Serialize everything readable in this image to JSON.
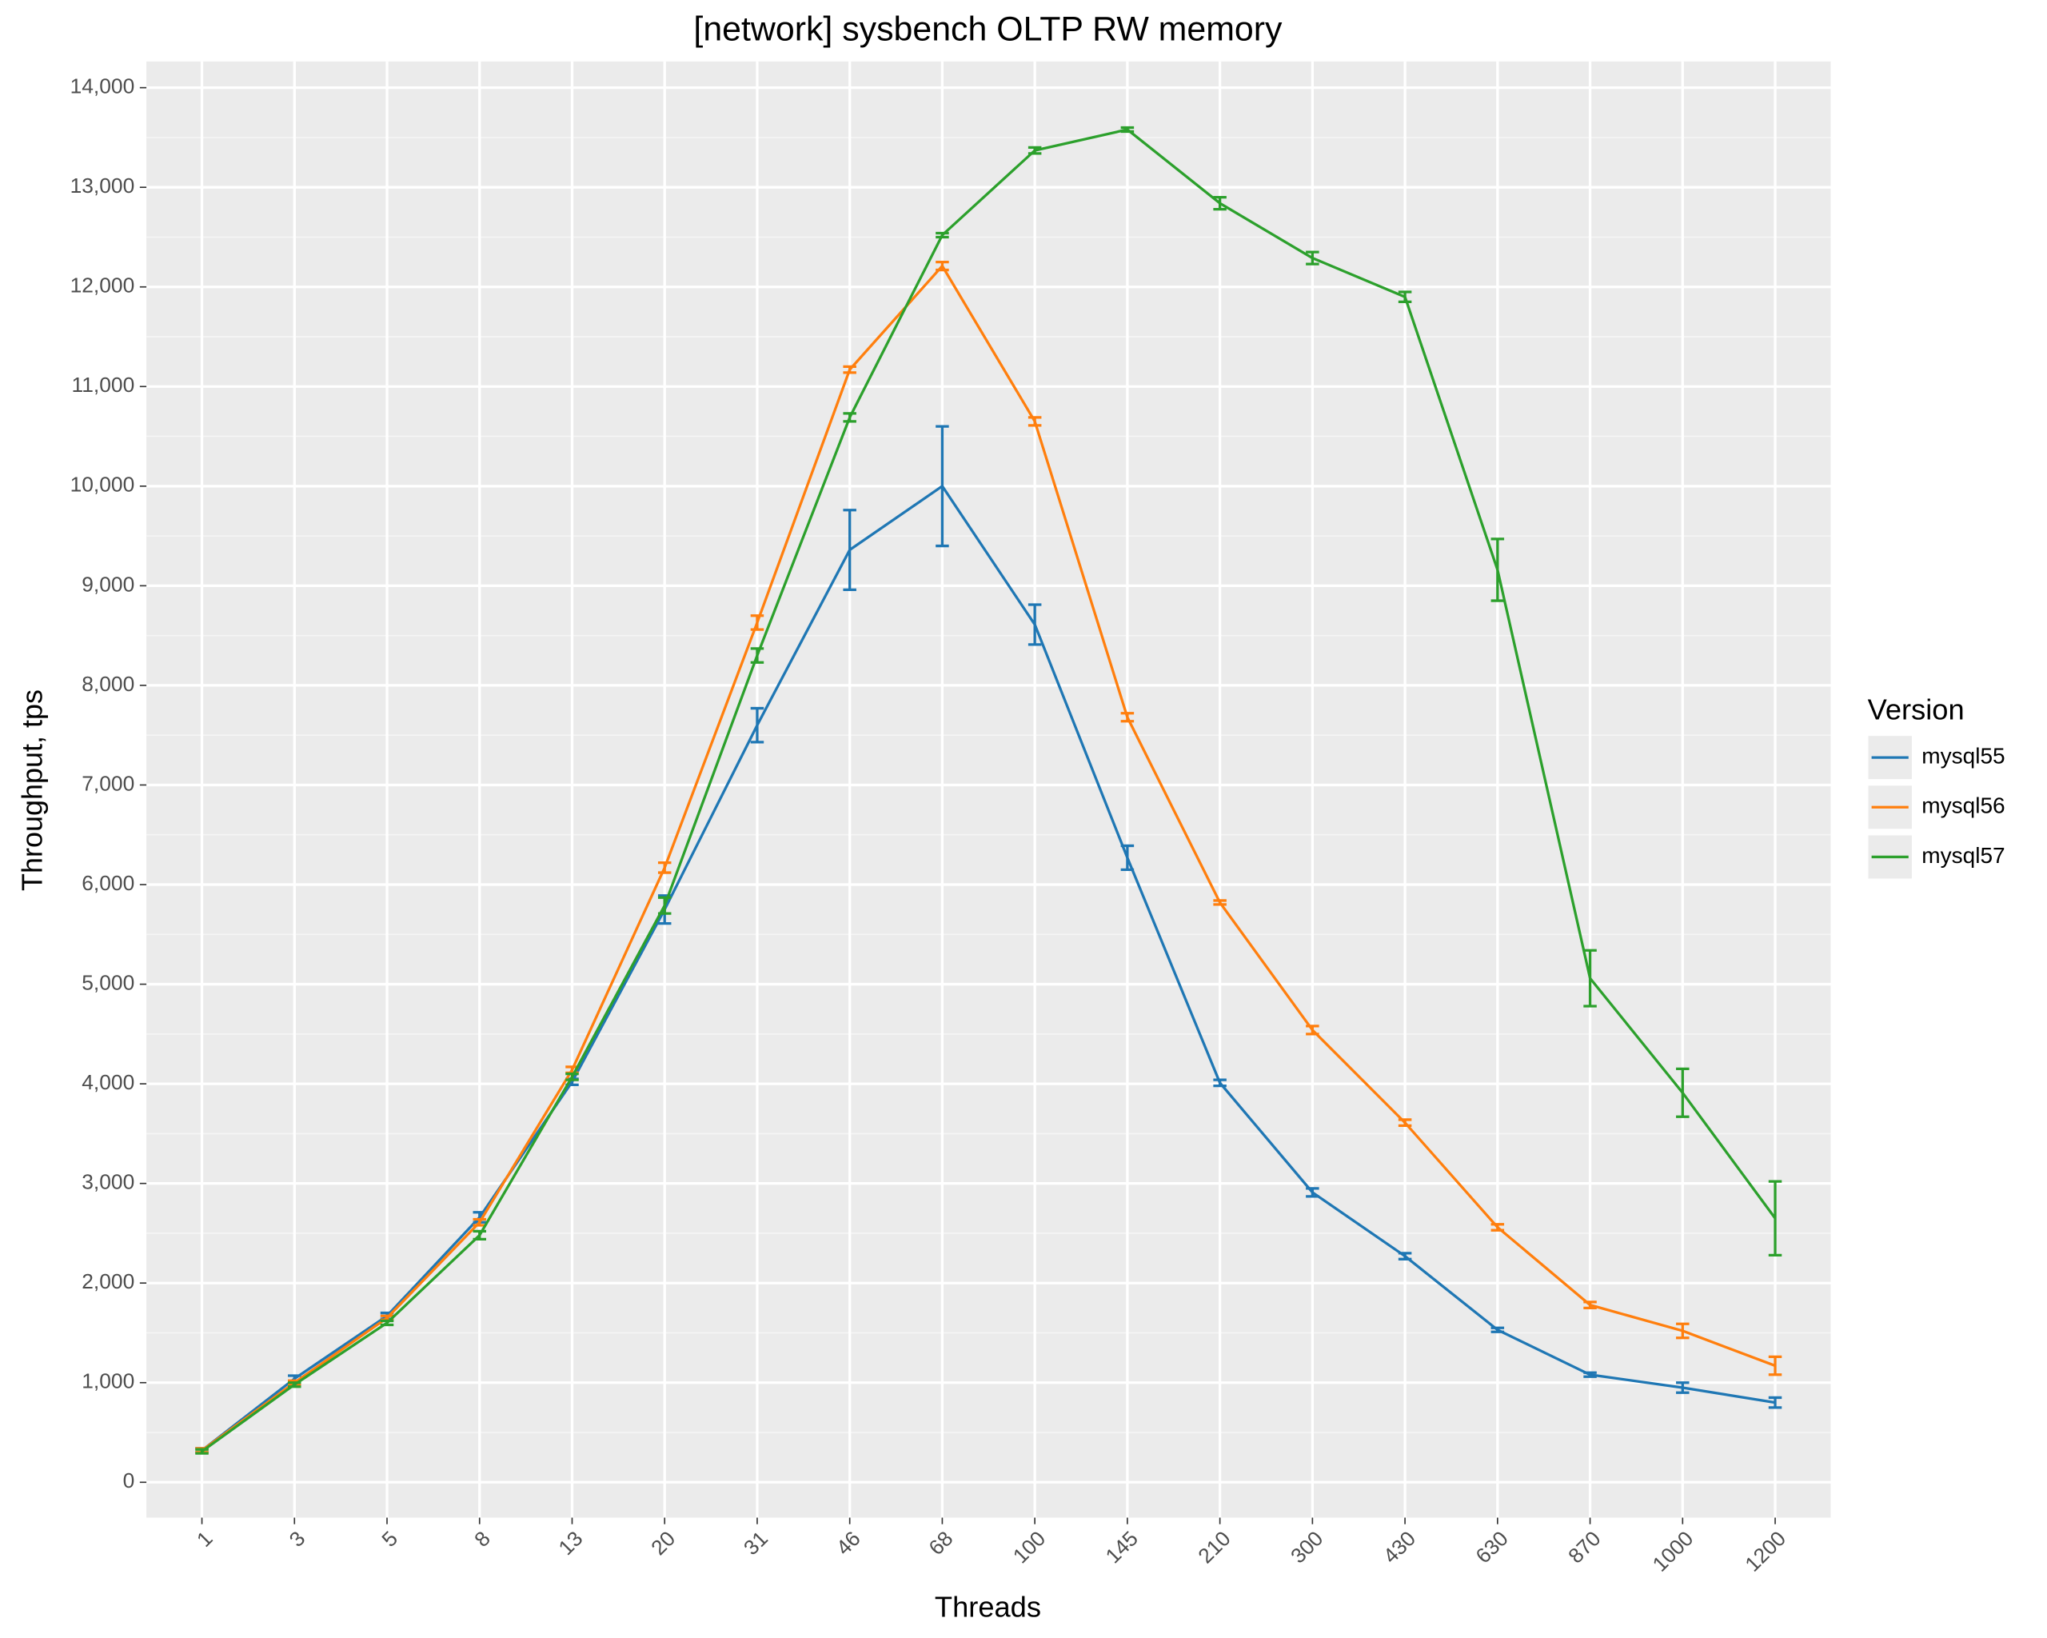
{
  "chart_data": {
    "type": "line",
    "title": "[network] sysbench OLTP RW memory",
    "x_label": "Threads",
    "y_label": "Throughput, tps",
    "legend_title": "Version",
    "legend_position": "right",
    "grid": true,
    "categories": [
      "1",
      "3",
      "5",
      "8",
      "13",
      "20",
      "31",
      "46",
      "68",
      "100",
      "145",
      "210",
      "300",
      "430",
      "630",
      "870",
      "1000",
      "1200"
    ],
    "series": [
      {
        "name": "mysql55",
        "color": "#1f77b4",
        "values": [
          320,
          1040,
          1670,
          2660,
          4020,
          5750,
          7600,
          9360,
          10000,
          8610,
          6270,
          4010,
          2910,
          2270,
          1530,
          1080,
          950,
          800
        ],
        "errors": [
          20,
          30,
          30,
          50,
          30,
          140,
          170,
          400,
          600,
          200,
          120,
          30,
          40,
          30,
          20,
          20,
          50,
          50
        ]
      },
      {
        "name": "mysql56",
        "color": "#ff7f0e",
        "values": [
          320,
          1000,
          1650,
          2610,
          4140,
          6170,
          8630,
          11170,
          12210,
          10650,
          7680,
          5820,
          4540,
          3610,
          2560,
          1780,
          1520,
          1170
        ],
        "errors": [
          20,
          20,
          20,
          30,
          30,
          50,
          70,
          30,
          40,
          40,
          40,
          20,
          40,
          30,
          30,
          30,
          70,
          90
        ]
      },
      {
        "name": "mysql57",
        "color": "#2ca02c",
        "values": [
          310,
          980,
          1600,
          2480,
          4070,
          5790,
          8300,
          10690,
          12520,
          13370,
          13580,
          12840,
          12290,
          11900,
          9160,
          5060,
          3910,
          2650
        ],
        "errors": [
          20,
          20,
          20,
          40,
          30,
          80,
          70,
          40,
          20,
          30,
          20,
          60,
          60,
          50,
          310,
          280,
          240,
          370
        ]
      }
    ],
    "ylim": [
      -355,
      14263
    ],
    "yticks": [
      0,
      {
        "value": 1000,
        "label": "1,000"
      },
      {
        "value": 2000,
        "label": "2,000"
      },
      {
        "value": 3000,
        "label": "3,000"
      },
      {
        "value": 4000,
        "label": "4,000"
      },
      {
        "value": 5000,
        "label": "5,000"
      },
      {
        "value": 6000,
        "label": "6,000"
      },
      {
        "value": 7000,
        "label": "7,000"
      },
      {
        "value": 8000,
        "label": "8,000"
      },
      {
        "value": 9000,
        "label": "9,000"
      },
      {
        "value": 10000,
        "label": "10,000"
      },
      {
        "value": 11000,
        "label": "11,000"
      },
      {
        "value": 12000,
        "label": "12,000"
      },
      {
        "value": 13000,
        "label": "13,000"
      },
      {
        "value": 14000,
        "label": "14,000"
      }
    ]
  }
}
